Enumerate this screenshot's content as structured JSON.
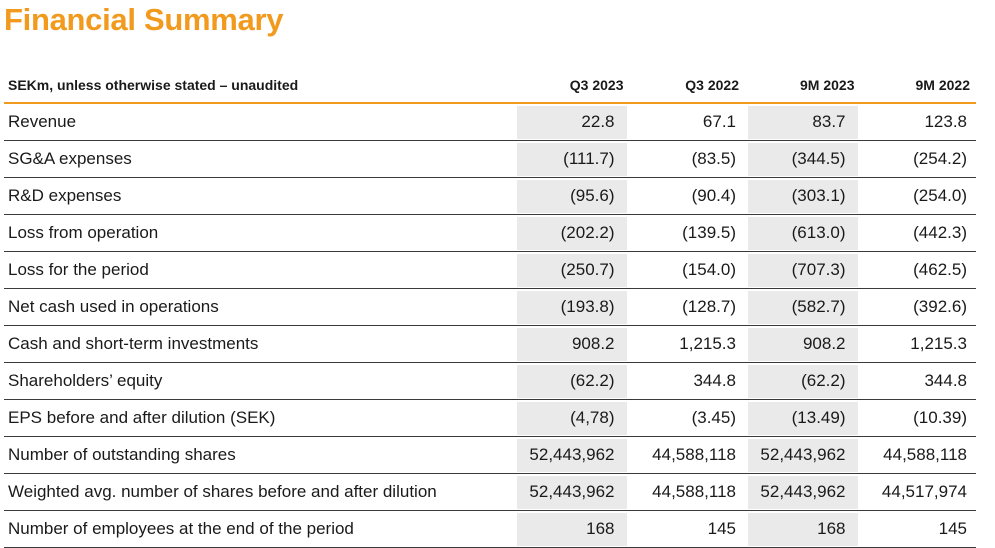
{
  "page": {
    "title": "Financial Summary"
  },
  "table": {
    "header": {
      "label": "SEKm, unless otherwise stated – unaudited",
      "columns": [
        "Q3 2023",
        "Q3 2022",
        "9M 2023",
        "9M 2022"
      ]
    },
    "rows": [
      {
        "label": "Revenue",
        "values": [
          "22.8",
          "67.1",
          "83.7",
          "123.8"
        ]
      },
      {
        "label": "SG&A expenses",
        "values": [
          "(111.7)",
          "(83.5)",
          "(344.5)",
          "(254.2)"
        ]
      },
      {
        "label": "R&D expenses",
        "values": [
          "(95.6)",
          "(90.4)",
          "(303.1)",
          "(254.0)"
        ]
      },
      {
        "label": "Loss from operation",
        "values": [
          "(202.2)",
          "(139.5)",
          "(613.0)",
          "(442.3)"
        ]
      },
      {
        "label": "Loss for the period",
        "values": [
          "(250.7)",
          "(154.0)",
          "(707.3)",
          "(462.5)"
        ]
      },
      {
        "label": "Net cash used in operations",
        "values": [
          "(193.8)",
          "(128.7)",
          "(582.7)",
          "(392.6)"
        ]
      },
      {
        "label": "Cash and short-term investments",
        "values": [
          "908.2",
          "1,215.3",
          "908.2",
          "1,215.3"
        ]
      },
      {
        "label": "Shareholders’ equity",
        "values": [
          "(62.2)",
          "344.8",
          "(62.2)",
          "344.8"
        ]
      },
      {
        "label": "EPS before and after dilution (SEK)",
        "values": [
          "(4,78)",
          "(3.45)",
          "(13.49)",
          "(10.39)"
        ]
      },
      {
        "label": "Number of outstanding shares",
        "values": [
          "52,443,962",
          "44,588,118",
          "52,443,962",
          "44,588,118"
        ]
      },
      {
        "label": "Weighted avg. number of shares before and after dilution",
        "values": [
          "52,443,962",
          "44,588,118",
          "52,443,962",
          "44,517,974"
        ]
      },
      {
        "label": "Number of employees at the end of the period",
        "values": [
          "168",
          "145",
          "168",
          "145"
        ]
      }
    ]
  },
  "colors": {
    "accent": "#f29a1e",
    "shaded_column": "#eaeaea",
    "row_rule": "#3a3a3a"
  }
}
